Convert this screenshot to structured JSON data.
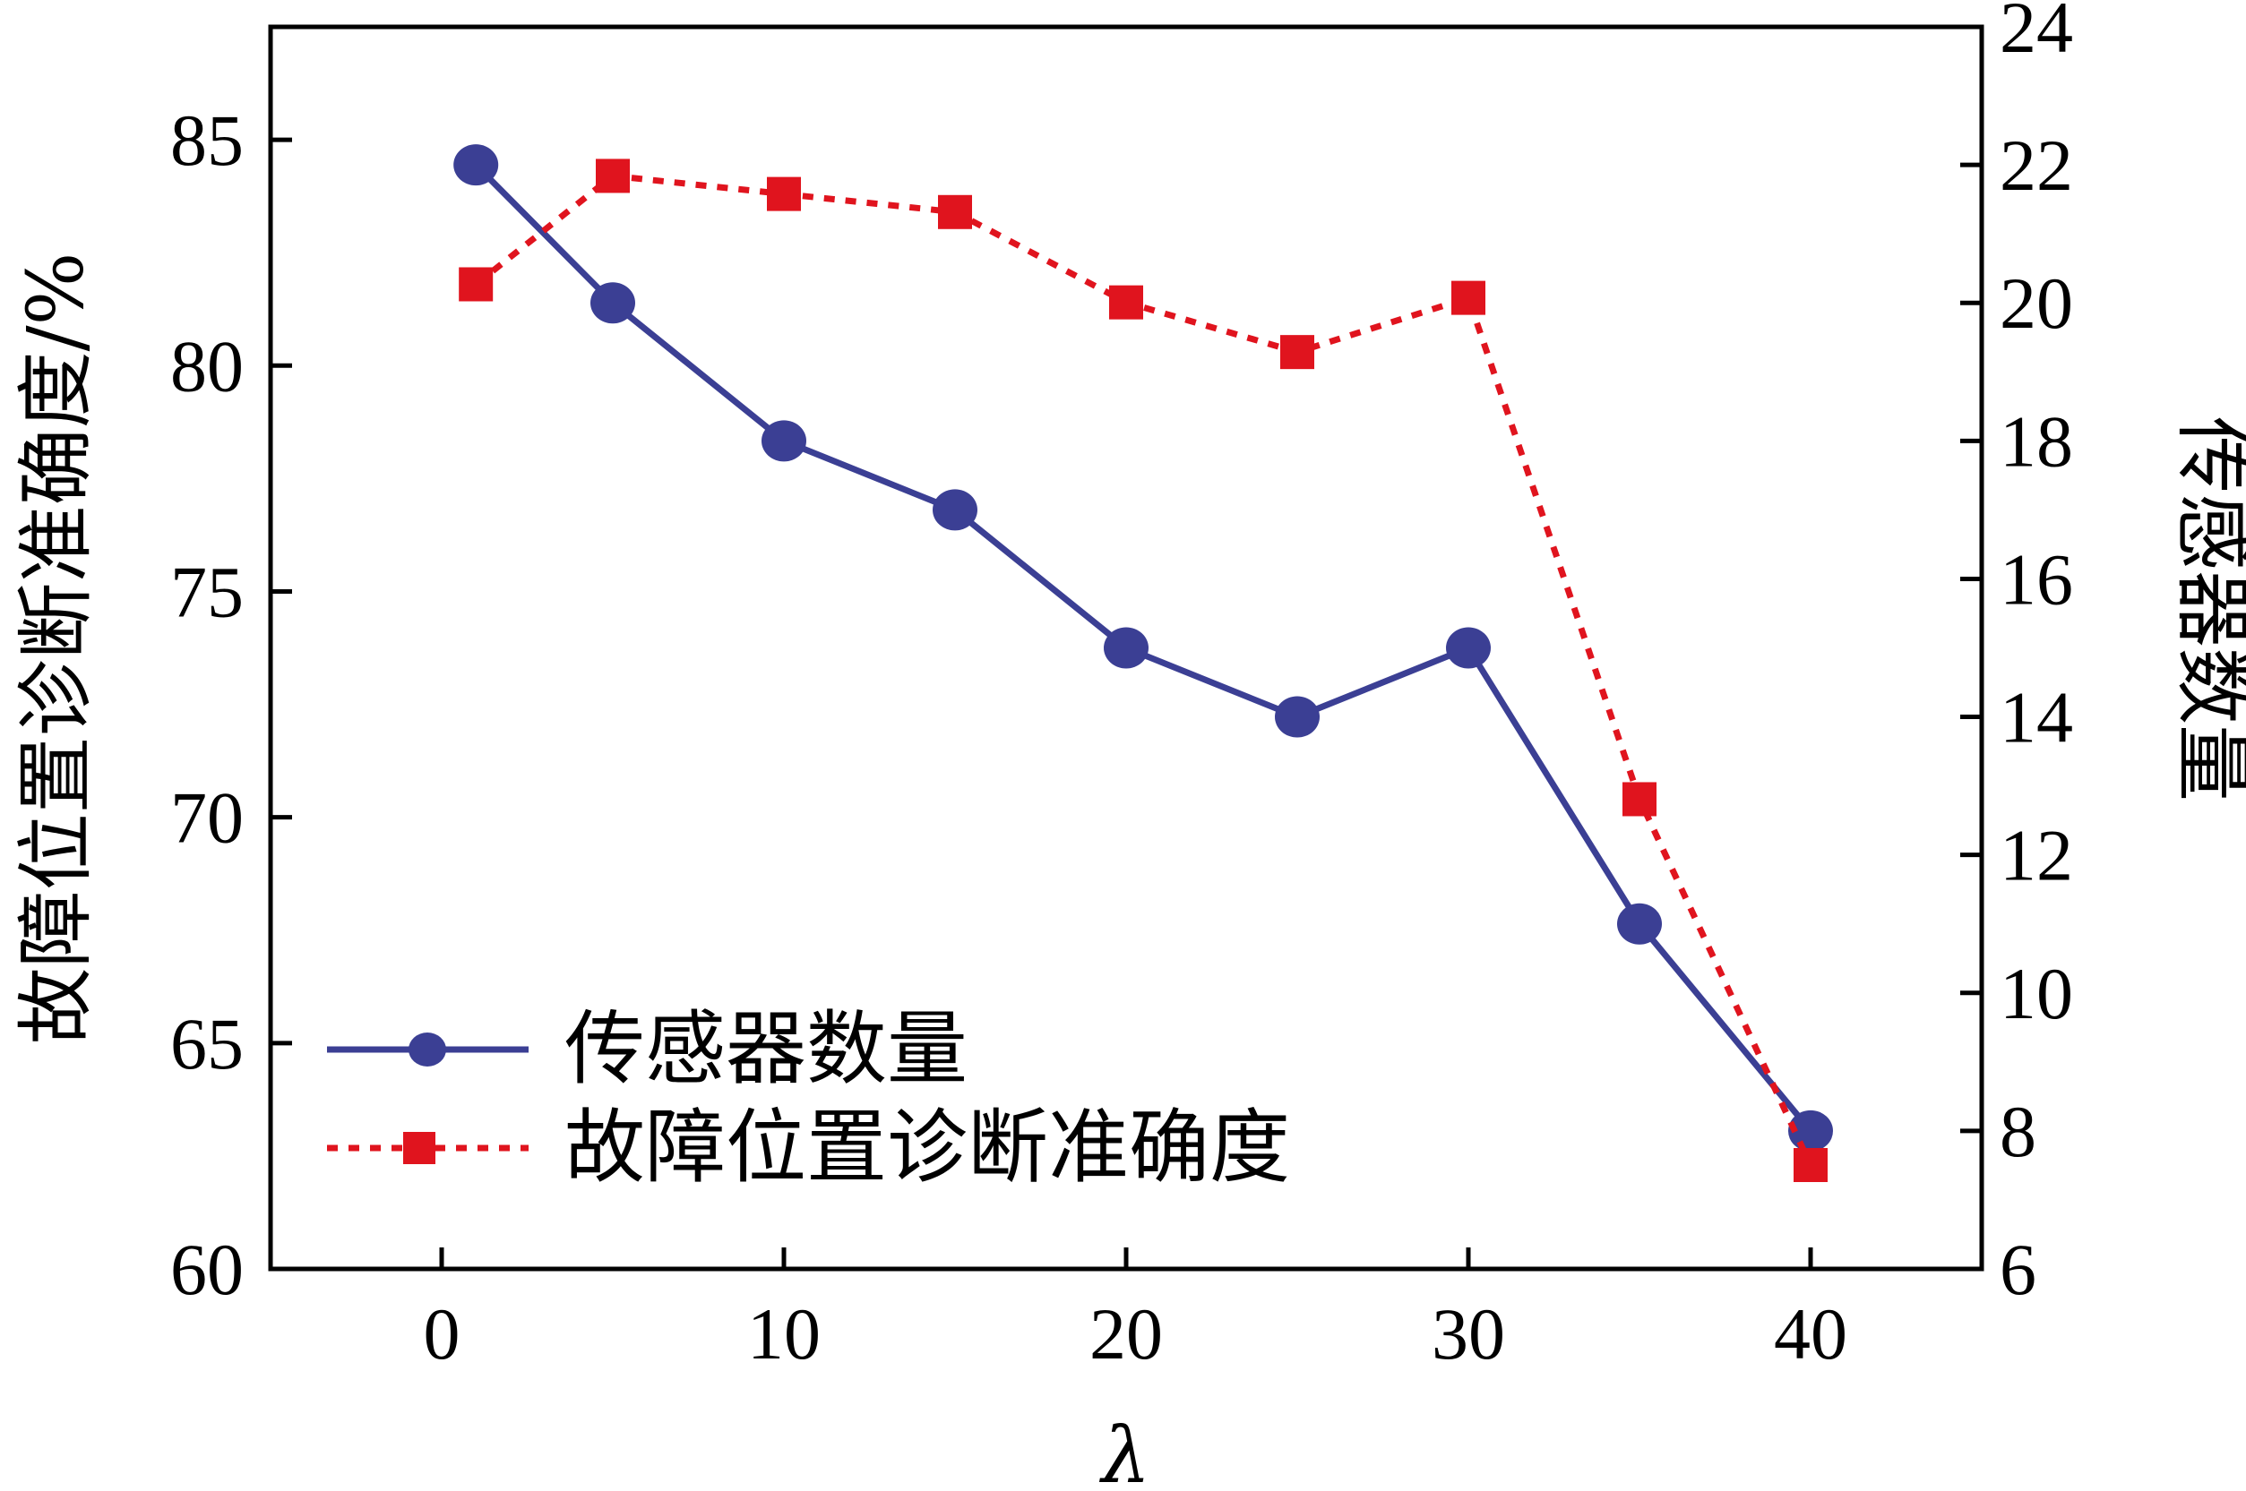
{
  "chart_data": {
    "type": "line",
    "title": "",
    "xlabel": "λ",
    "ylabel_left": "故障位置诊断准确度/%",
    "ylabel_right": "传感器数量",
    "xlim": [
      -5,
      45
    ],
    "ylim_left": [
      60,
      87.5
    ],
    "ylim_right": [
      6,
      24
    ],
    "x_ticks": [
      "0",
      "10",
      "20",
      "30",
      "40"
    ],
    "y_left_ticks": [
      "60",
      "65",
      "70",
      "75",
      "80",
      "85"
    ],
    "y_right_ticks": [
      "6",
      "8",
      "10",
      "12",
      "14",
      "16",
      "18",
      "20",
      "22",
      "24"
    ],
    "x_tick_values": [
      0,
      10,
      20,
      30,
      40
    ],
    "y_left_tick_values": [
      60,
      65,
      70,
      75,
      80,
      85
    ],
    "y_right_tick_values": [
      6,
      8,
      10,
      12,
      14,
      16,
      18,
      20,
      22,
      24
    ],
    "grid": false,
    "legend_position": "bottom-left",
    "series": [
      {
        "name": "传感器数量",
        "axis": "right",
        "color": "#3b3f94",
        "line_style": "solid",
        "marker": "circle",
        "x": [
          1,
          5,
          10,
          15,
          20,
          25,
          30,
          35,
          40
        ],
        "y": [
          22,
          20,
          18,
          17,
          15,
          14,
          15,
          11,
          8
        ]
      },
      {
        "name": "故障位置诊断准确度",
        "axis": "left",
        "color": "#e0141e",
        "line_style": "dotted",
        "marker": "square",
        "x": [
          1,
          5,
          10,
          15,
          20,
          25,
          30,
          35,
          40
        ],
        "y": [
          81.8,
          84.2,
          83.8,
          83.4,
          81.4,
          80.3,
          81.5,
          70.4,
          62.3
        ]
      }
    ]
  }
}
